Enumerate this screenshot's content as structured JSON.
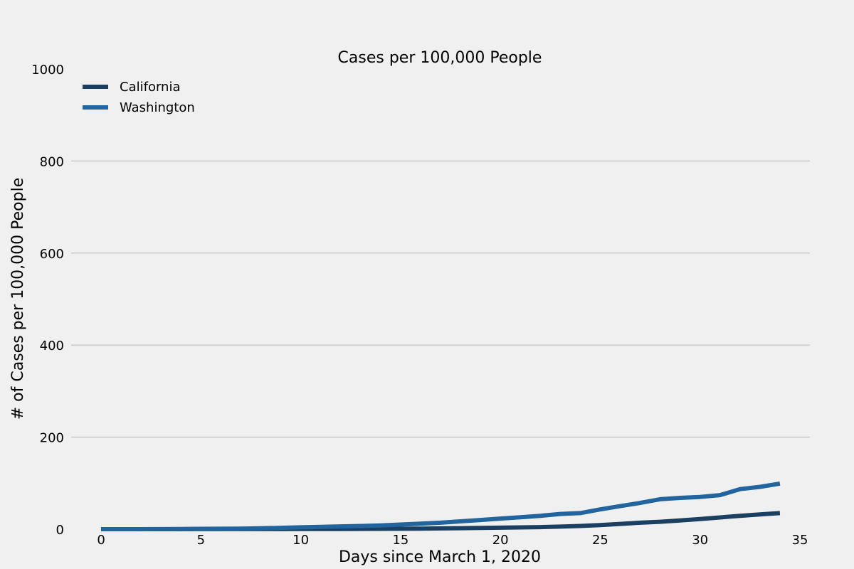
{
  "chart_data": {
    "type": "line",
    "title": "Cases per 100,000 People",
    "xlabel": "Days since March 1, 2020",
    "ylabel": "# of Cases per 100,000 People",
    "xlim": [
      -1.5,
      35.5
    ],
    "ylim": [
      0,
      1000
    ],
    "xticks": [
      0,
      5,
      10,
      15,
      20,
      25,
      30,
      35
    ],
    "yticks": [
      0,
      200,
      400,
      600,
      800,
      1000
    ],
    "grid": "horizontal",
    "legend_position": "top-left",
    "x": [
      0,
      1,
      2,
      3,
      4,
      5,
      6,
      7,
      8,
      9,
      10,
      11,
      12,
      13,
      14,
      15,
      16,
      17,
      18,
      19,
      20,
      21,
      22,
      23,
      24,
      25,
      26,
      27,
      28,
      29,
      30,
      31,
      32,
      33,
      34
    ],
    "series": [
      {
        "name": "California",
        "color": "#1b3f61",
        "values": [
          0,
          0,
          0,
          0,
          0,
          0.1,
          0.1,
          0.1,
          0.2,
          0.2,
          0.3,
          0.4,
          0.5,
          0.6,
          0.8,
          1.0,
          1.3,
          1.7,
          2.1,
          2.6,
          3.2,
          3.8,
          4.5,
          5.5,
          7,
          9,
          11.5,
          14,
          16,
          19,
          22,
          25.5,
          29,
          32,
          35
        ]
      },
      {
        "name": "Washington",
        "color": "#22659e",
        "values": [
          0,
          0,
          0,
          0.2,
          0.4,
          0.7,
          1.0,
          1.3,
          1.8,
          3,
          4,
          5,
          6,
          7,
          8,
          10,
          12,
          14,
          17,
          20,
          23,
          26,
          29,
          33,
          35,
          43,
          50,
          57,
          65,
          68,
          70,
          74,
          87,
          92,
          99
        ]
      }
    ]
  }
}
